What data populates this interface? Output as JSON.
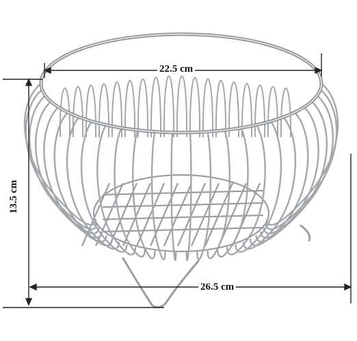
{
  "image": {
    "subject": "stainless-steel-wire-fruit-basket",
    "background_color": "#ffffff",
    "wire_color": "#a9acb0",
    "dimension_line_color": "#222222"
  },
  "dimensions": {
    "top_diameter": "22.5 cm",
    "height": "13.5 cm",
    "base_width": "26.5 cm"
  }
}
